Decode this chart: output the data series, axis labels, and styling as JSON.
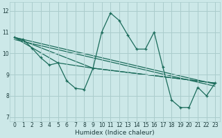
{
  "xlabel": "Humidex (Indice chaleur)",
  "xlim": [
    -0.5,
    23.5
  ],
  "ylim": [
    6.8,
    12.4
  ],
  "yticks": [
    7,
    8,
    9,
    10,
    11,
    12
  ],
  "xticks": [
    0,
    1,
    2,
    3,
    4,
    5,
    6,
    7,
    8,
    9,
    10,
    11,
    12,
    13,
    14,
    15,
    16,
    17,
    18,
    19,
    20,
    21,
    22,
    23
  ],
  "background_color": "#cce8e8",
  "grid_color": "#aacccc",
  "line_color": "#1a6b5a",
  "main_line_x": [
    0,
    1,
    2,
    3,
    4,
    5,
    6,
    7,
    8,
    9,
    10,
    11,
    12,
    13,
    14,
    15,
    16,
    17,
    18,
    19,
    20,
    21,
    22,
    23
  ],
  "main_line_y": [
    10.75,
    10.65,
    10.25,
    9.8,
    9.45,
    9.55,
    8.7,
    8.35,
    8.3,
    9.3,
    11.0,
    11.9,
    11.55,
    10.85,
    10.2,
    10.2,
    11.0,
    9.35,
    7.8,
    7.45,
    7.45,
    8.4,
    8.0,
    8.6
  ],
  "trend1_x": [
    0,
    23
  ],
  "trend1_y": [
    10.75,
    8.55
  ],
  "trend2_x": [
    0,
    23
  ],
  "trend2_y": [
    10.65,
    8.45
  ],
  "trend3_x": [
    0,
    9,
    23
  ],
  "trend3_y": [
    10.75,
    9.3,
    8.6
  ],
  "trend4_x": [
    0,
    5,
    9,
    23
  ],
  "trend4_y": [
    10.75,
    9.55,
    9.3,
    8.6
  ]
}
